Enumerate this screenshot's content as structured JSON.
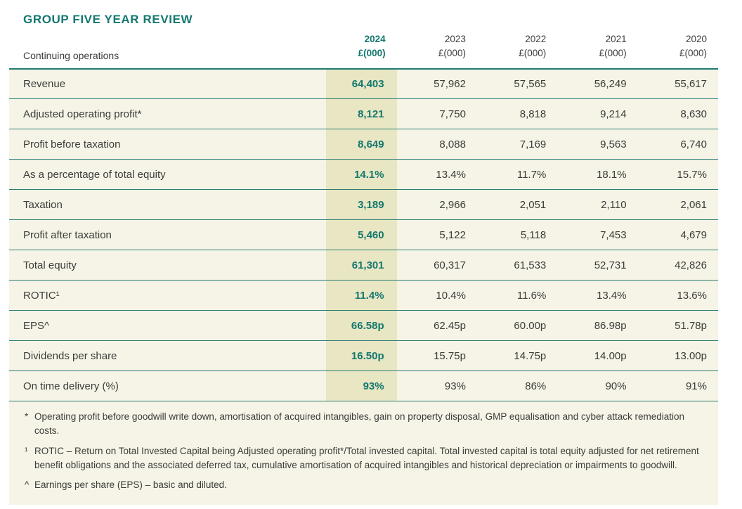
{
  "page": {
    "title": "GROUP FIVE YEAR REVIEW",
    "accent_color": "#14786F",
    "row_background": "#F5F4E6",
    "highlight_background": "#E8E6C3"
  },
  "table": {
    "label_header": "Continuing operations",
    "columns": [
      {
        "year": "2024",
        "unit": "£(000)"
      },
      {
        "year": "2023",
        "unit": "£(000)"
      },
      {
        "year": "2022",
        "unit": "£(000)"
      },
      {
        "year": "2021",
        "unit": "£(000)"
      },
      {
        "year": "2020",
        "unit": "£(000)"
      }
    ],
    "rows": [
      {
        "label": "Revenue",
        "values": [
          "64,403",
          "57,962",
          "57,565",
          "56,249",
          "55,617"
        ]
      },
      {
        "label": "Adjusted operating profit*",
        "values": [
          "8,121",
          "7,750",
          "8,818",
          "9,214",
          "8,630"
        ]
      },
      {
        "label": "Profit before taxation",
        "values": [
          "8,649",
          "8,088",
          "7,169",
          "9,563",
          "6,740"
        ]
      },
      {
        "label": "As a percentage of total equity",
        "values": [
          "14.1%",
          "13.4%",
          "11.7%",
          "18.1%",
          "15.7%"
        ]
      },
      {
        "label": "Taxation",
        "values": [
          "3,189",
          "2,966",
          "2,051",
          "2,110",
          "2,061"
        ]
      },
      {
        "label": "Profit after taxation",
        "values": [
          "5,460",
          "5,122",
          "5,118",
          "7,453",
          "4,679"
        ]
      },
      {
        "label": "Total equity",
        "values": [
          "61,301",
          "60,317",
          "61,533",
          "52,731",
          "42,826"
        ]
      },
      {
        "label": "ROTIC¹",
        "values": [
          "11.4%",
          "10.4%",
          "11.6%",
          "13.4%",
          "13.6%"
        ]
      },
      {
        "label": "EPS^",
        "values": [
          "66.58p",
          "62.45p",
          "60.00p",
          "86.98p",
          "51.78p"
        ]
      },
      {
        "label": "Dividends per share",
        "values": [
          "16.50p",
          "15.75p",
          "14.75p",
          "14.00p",
          "13.00p"
        ]
      },
      {
        "label": "On time delivery (%)",
        "values": [
          "93%",
          "93%",
          "86%",
          "90%",
          "91%"
        ]
      }
    ]
  },
  "footnotes": [
    {
      "marker": "*",
      "text": "Operating profit before goodwill write down, amortisation of acquired intangibles, gain on property disposal, GMP equalisation and cyber attack remediation costs."
    },
    {
      "marker": "¹",
      "text": "ROTIC – Return on Total Invested Capital being Adjusted operating profit*/Total invested capital. Total invested capital is total equity adjusted for net retirement benefit obligations and the associated deferred tax, cumulative amortisation of acquired intangibles and historical depreciation or impairments to goodwill."
    },
    {
      "marker": "^",
      "text": "Earnings per share (EPS) – basic and diluted."
    }
  ]
}
